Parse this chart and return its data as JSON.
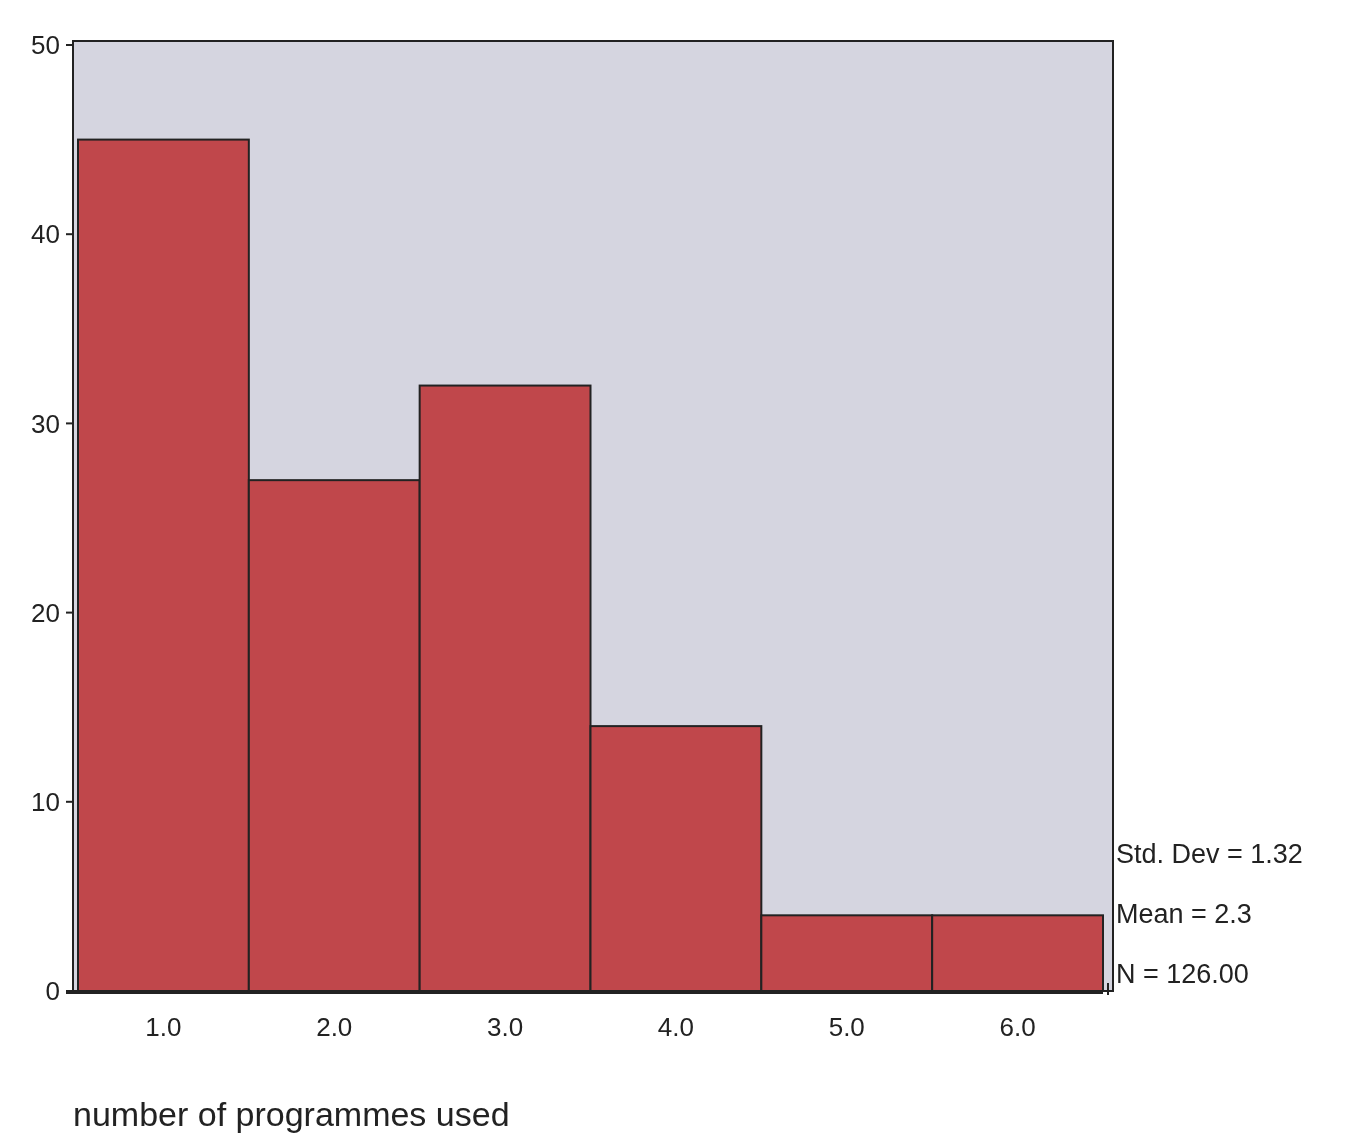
{
  "chart_data": {
    "type": "histogram",
    "xlabel": "number of programmes used",
    "bins": [
      0.5,
      1.5,
      2.5,
      3.5,
      4.5,
      5.5,
      6.5
    ],
    "values": [
      45,
      27,
      32,
      14,
      4,
      4
    ],
    "color": "#c0474b",
    "xlim": [
      0.5,
      6.5
    ],
    "xticks": [
      {
        "value": 1,
        "label": "1.0"
      },
      {
        "value": 2,
        "label": "2.0"
      },
      {
        "value": 3,
        "label": "3.0"
      },
      {
        "value": 4,
        "label": "4.0"
      },
      {
        "value": 5,
        "label": "5.0"
      },
      {
        "value": 6,
        "label": "6.0"
      }
    ],
    "ylim": [
      0,
      50
    ],
    "yticks": [
      0,
      10,
      20,
      30,
      40,
      50
    ],
    "annotations": [
      "Std. Dev = 1.32",
      "Mean = 2.3",
      "N = 126.00"
    ]
  }
}
